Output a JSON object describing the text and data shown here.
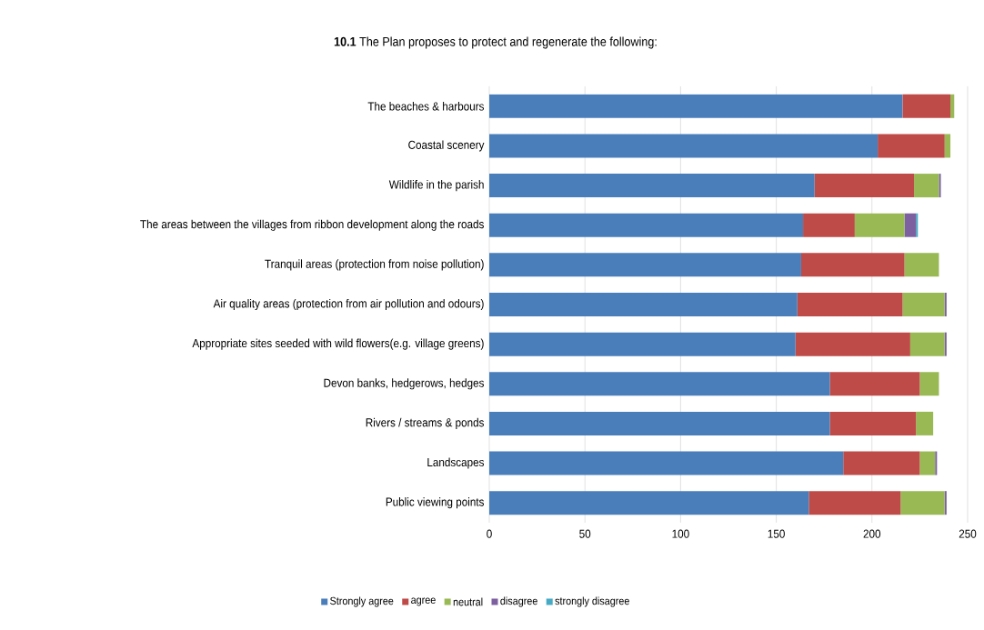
{
  "chart_data": {
    "type": "bar",
    "orientation": "horizontal",
    "stacked": true,
    "title": "**10.1** The Plan proposes to protect and regenerate the following:",
    "categories": [
      "The beaches & harbours",
      "Coastal scenery",
      "Wildlife in the parish",
      "The areas between the villages from ribbon development along the roads",
      "Tranquil areas (protection from noise pollution)",
      "Air quality areas (protection from air pollution and odours)",
      "Appropriate sites seeded with wild flowers(e.g. village greens)",
      "Devon banks, hedgerows, hedges",
      "Rivers / streams & ponds",
      "Landscapes",
      "Public viewing points"
    ],
    "series": [
      {
        "name": "Strongly agree",
        "color": "#4a7ebb",
        "values": [
          216,
          203,
          170,
          164,
          163,
          161,
          160,
          178,
          178,
          185,
          167
        ]
      },
      {
        "name": "agree",
        "color": "#be4b48",
        "values": [
          25,
          35,
          52,
          27,
          54,
          55,
          60,
          47,
          45,
          40,
          48
        ]
      },
      {
        "name": "neutral",
        "color": "#98b954",
        "values": [
          2,
          3,
          13,
          26,
          18,
          22,
          18,
          10,
          9,
          8,
          23
        ]
      },
      {
        "name": "disagree",
        "color": "#7d60a0",
        "values": [
          0,
          0,
          1,
          6,
          0,
          1,
          1,
          0,
          0,
          1,
          1
        ]
      },
      {
        "name": "strongly disagree",
        "color": "#46aac5",
        "values": [
          0,
          0,
          0,
          1,
          0,
          0,
          0,
          0,
          0,
          0,
          0
        ]
      }
    ],
    "xlim": [
      0,
      250
    ],
    "xticks": [
      0,
      50,
      100,
      150,
      200,
      250
    ],
    "grid": "x",
    "legend": "bottom"
  }
}
